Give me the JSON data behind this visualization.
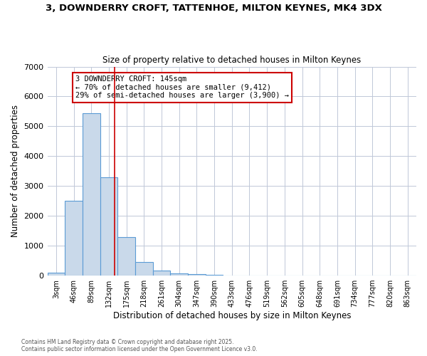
{
  "title_line1": "3, DOWNDERRY CROFT, TATTENHOE, MILTON KEYNES, MK4 3DX",
  "title_line2": "Size of property relative to detached houses in Milton Keynes",
  "xlabel": "Distribution of detached houses by size in Milton Keynes",
  "ylabel": "Number of detached properties",
  "bin_labels": [
    "3sqm",
    "46sqm",
    "89sqm",
    "132sqm",
    "175sqm",
    "218sqm",
    "261sqm",
    "304sqm",
    "347sqm",
    "390sqm",
    "433sqm",
    "476sqm",
    "519sqm",
    "562sqm",
    "605sqm",
    "648sqm",
    "691sqm",
    "734sqm",
    "777sqm",
    "820sqm",
    "863sqm"
  ],
  "bar_heights": [
    100,
    2500,
    5450,
    3300,
    1300,
    450,
    175,
    80,
    50,
    30,
    0,
    0,
    0,
    0,
    0,
    0,
    0,
    0,
    0,
    0,
    0
  ],
  "bar_color": "#c9d9ea",
  "bar_edge_color": "#5b9bd5",
  "ylim": [
    0,
    7000
  ],
  "red_line_x": 3.31,
  "annotation_text": "3 DOWNDERRY CROFT: 145sqm\n← 70% of detached houses are smaller (9,412)\n29% of semi-detached houses are larger (3,900) →",
  "annotation_box_color": "#ffffff",
  "annotation_border_color": "#cc0000",
  "footer_line1": "Contains HM Land Registry data © Crown copyright and database right 2025.",
  "footer_line2": "Contains public sector information licensed under the Open Government Licence v3.0.",
  "bg_color": "#ffffff",
  "grid_color": "#c0c8d8",
  "yticks": [
    0,
    1000,
    2000,
    3000,
    4000,
    5000,
    6000,
    7000
  ]
}
